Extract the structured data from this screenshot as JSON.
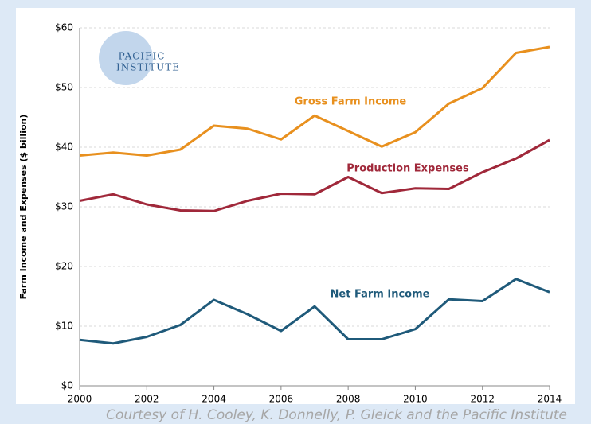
{
  "chart_data": {
    "type": "line",
    "y_label": "Farm Income and Expenses ($ billion)",
    "caption": "Courtesy of H. Cooley, K. Donnelly, P. Gleick and the Pacific Institute",
    "logo": [
      "PACIFIC",
      "INSTITUTE"
    ],
    "x": [
      2000,
      2001,
      2002,
      2003,
      2004,
      2005,
      2006,
      2007,
      2008,
      2009,
      2010,
      2011,
      2012,
      2013,
      2014
    ],
    "xlim": [
      2000,
      2014
    ],
    "xticks": [
      2000,
      2002,
      2004,
      2006,
      2008,
      2010,
      2012,
      2014
    ],
    "ylim": [
      0,
      60
    ],
    "yticks": [
      {
        "value": 0,
        "label": "$0"
      },
      {
        "value": 10,
        "label": "$10"
      },
      {
        "value": 20,
        "label": "$20"
      },
      {
        "value": 30,
        "label": "$30"
      },
      {
        "value": 40,
        "label": "$40"
      },
      {
        "value": 50,
        "label": "$50"
      },
      {
        "value": 60,
        "label": "$60"
      }
    ],
    "grid": true,
    "series": [
      {
        "name": "Gross Farm Income",
        "color": "#e8901e",
        "values": [
          38.6,
          39.1,
          38.6,
          39.6,
          43.6,
          43.1,
          41.3,
          45.3,
          42.7,
          40.1,
          42.5,
          47.3,
          49.9,
          55.8,
          56.8
        ]
      },
      {
        "name": "Production Expenses",
        "color": "#a0283a",
        "values": [
          31.0,
          32.1,
          30.4,
          29.4,
          29.3,
          31.0,
          32.2,
          32.1,
          35.0,
          32.3,
          33.1,
          33.0,
          35.8,
          38.1,
          41.2
        ]
      },
      {
        "name": "Net Farm Income",
        "color": "#1f5a7a",
        "values": [
          7.7,
          7.1,
          8.2,
          10.2,
          14.4,
          12.0,
          9.2,
          13.3,
          7.8,
          7.8,
          9.5,
          14.5,
          14.2,
          17.9,
          15.7
        ]
      }
    ]
  }
}
